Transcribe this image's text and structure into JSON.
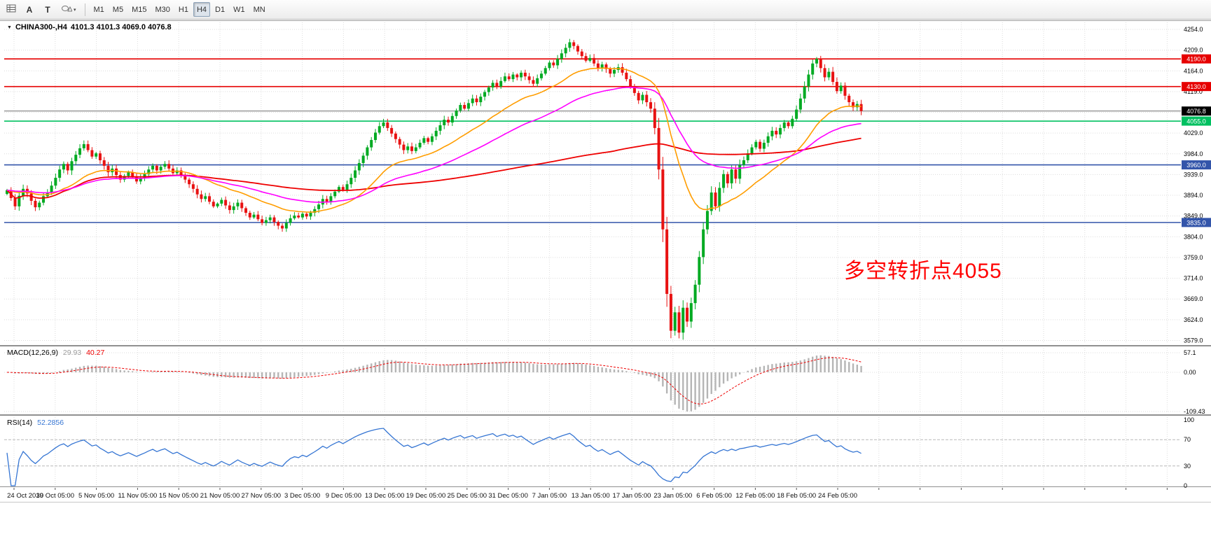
{
  "toolbar": {
    "tool_a": "A",
    "tool_t": "T",
    "caret": "▾",
    "timeframes": [
      "M1",
      "M5",
      "M15",
      "M30",
      "H1",
      "H4",
      "D1",
      "W1",
      "MN"
    ],
    "active_timeframe": "H4"
  },
  "chart": {
    "caret": "▼",
    "title_text": "CHINA300-,H4",
    "ohlc_text": "4101.3 4101.3 4069.0 4076.8",
    "price_ticks": [
      "4254.0",
      "4209.0",
      "4164.0",
      "4119.0",
      "4074.0",
      "4029.0",
      "3984.0",
      "3939.0",
      "3894.0",
      "3849.0",
      "3804.0",
      "3759.0",
      "3714.0",
      "3669.0",
      "3624.0",
      "3579.0"
    ],
    "levels": [
      {
        "label": "4190.0",
        "value": 4190,
        "color": "#e60000"
      },
      {
        "label": "4130.0",
        "value": 4130,
        "color": "#e60000"
      },
      {
        "label": "4055.0",
        "value": 4055,
        "color": "#00c060"
      },
      {
        "label": "3960.0",
        "value": 3960,
        "color": "#3355aa"
      },
      {
        "label": "3835.0",
        "value": 3835,
        "color": "#3355aa"
      }
    ],
    "current_price": {
      "label": "4076.8",
      "value": 4076.8,
      "badge_bg": "#000000",
      "line_color": "#707070"
    },
    "annotation": {
      "text": "多空转折点4055",
      "color": "#ff0000"
    }
  },
  "macd": {
    "label": "MACD(12,26,9)",
    "value_main": "29.93",
    "value_signal": "40.27",
    "ticks": [
      "57.1",
      "0.00",
      "-109.43"
    ]
  },
  "rsi": {
    "label": "RSI(14)",
    "value": "52.2856",
    "ticks": [
      "100",
      "70",
      "30",
      "0"
    ],
    "levels": [
      70,
      30
    ]
  },
  "chart_data": {
    "type": "candlestick",
    "title": "CHINA300-,H4",
    "symbol": "CHINA300-",
    "timeframe": "H4",
    "current_bar": {
      "open": 4101.3,
      "high": 4101.3,
      "low": 4069.0,
      "close": 4076.8
    },
    "ylim": [
      3556,
      4266
    ],
    "y_tick_step": 45,
    "horizontal_levels": [
      4190,
      4130,
      4055,
      3960,
      3835
    ],
    "x_labels": [
      "24 Oct 2019",
      "30 Oct 05:00",
      "5 Nov 05:00",
      "11 Nov 05:00",
      "15 Nov 05:00",
      "21 Nov 05:00",
      "27 Nov 05:00",
      "3 Dec 05:00",
      "9 Dec 05:00",
      "13 Dec 05:00",
      "19 Dec 05:00",
      "25 Dec 05:00",
      "31 Dec 05:00",
      "7 Jan 05:00",
      "13 Jan 05:00",
      "17 Jan 05:00",
      "23 Jan 05:00",
      "6 Feb 05:00",
      "12 Feb 05:00",
      "18 Feb 05:00",
      "24 Feb 05:00"
    ],
    "closes": [
      3905,
      3888,
      3870,
      3893,
      3908,
      3898,
      3882,
      3868,
      3878,
      3892,
      3900,
      3915,
      3932,
      3950,
      3962,
      3948,
      3968,
      3982,
      3996,
      4005,
      3992,
      3978,
      3985,
      3970,
      3958,
      3944,
      3952,
      3938,
      3928,
      3936,
      3944,
      3934,
      3924,
      3932,
      3940,
      3950,
      3958,
      3948,
      3956,
      3962,
      3952,
      3942,
      3948,
      3938,
      3928,
      3918,
      3908,
      3896,
      3886,
      3892,
      3880,
      3870,
      3876,
      3884,
      3872,
      3862,
      3870,
      3878,
      3866,
      3856,
      3846,
      3852,
      3842,
      3834,
      3840,
      3846,
      3836,
      3828,
      3822,
      3834,
      3844,
      3850,
      3846,
      3854,
      3848,
      3856,
      3864,
      3874,
      3886,
      3880,
      3892,
      3902,
      3912,
      3906,
      3918,
      3932,
      3948,
      3964,
      3980,
      3998,
      4014,
      4030,
      4044,
      4052,
      4040,
      4028,
      4016,
      4004,
      3992,
      4000,
      3990,
      3998,
      4008,
      4018,
      4010,
      4022,
      4034,
      4046,
      4058,
      4052,
      4066,
      4078,
      4090,
      4082,
      4094,
      4104,
      4096,
      4108,
      4118,
      4128,
      4138,
      4130,
      4142,
      4152,
      4146,
      4156,
      4150,
      4160,
      4152,
      4144,
      4136,
      4148,
      4158,
      4170,
      4182,
      4176,
      4190,
      4202,
      4214,
      4226,
      4218,
      4206,
      4196,
      4186,
      4192,
      4180,
      4170,
      4178,
      4168,
      4158,
      4166,
      4172,
      4160,
      4146,
      4130,
      4116,
      4100,
      4112,
      4096,
      4082,
      4040,
      3950,
      3820,
      3680,
      3600,
      3640,
      3596,
      3650,
      3620,
      3660,
      3700,
      3760,
      3820,
      3860,
      3900,
      3870,
      3910,
      3940,
      3920,
      3950,
      3930,
      3960,
      3970,
      3985,
      3998,
      4010,
      3995,
      4008,
      4022,
      4034,
      4026,
      4040,
      4052,
      4044,
      4060,
      4080,
      4104,
      4130,
      4156,
      4180,
      4190,
      4170,
      4150,
      4162,
      4140,
      4120,
      4132,
      4110,
      4096,
      4085,
      4092,
      4076.8
    ],
    "moving_averages": [
      {
        "name": "slow-red",
        "method": "sma",
        "period": 150,
        "color": "#ee0000",
        "width": 1.8
      },
      {
        "name": "mid-orange",
        "method": "ema",
        "period": 24,
        "color": "#ff9d00",
        "width": 1.6
      },
      {
        "name": "fast-magenta",
        "method": "ema",
        "period": 52,
        "color": "#ff00ff",
        "width": 1.6
      }
    ],
    "indicators": [
      {
        "type": "MACD",
        "params": [
          12,
          26,
          9
        ],
        "last_values": [
          29.93,
          40.27
        ]
      },
      {
        "type": "RSI",
        "params": [
          14
        ],
        "last_value": 52.2856
      }
    ]
  },
  "colors": {
    "bull": "#00aa22",
    "bear": "#e81212",
    "grid": "#dcdcdc",
    "macd_hist": "#b5b5b5",
    "macd_value_main": "#9a9a9a",
    "macd_signal": "#ee0000",
    "rsi_line": "#3575d3",
    "axis_text": "#000000",
    "annotation": "#ff0000"
  }
}
